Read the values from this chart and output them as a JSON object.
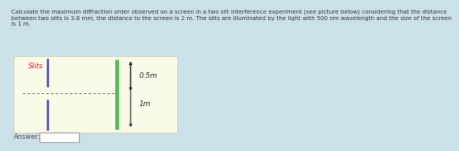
{
  "bg_color": "#cce0ea",
  "panel_color": "#fafae8",
  "title_text": "Calculate the maximum diffraction order observed on a screen in a two slit interference experiment (see picture below) considering that the distance\nbetween two slits is 3.8 mm, the distance to the screen is 2 m. The slits are illuminated by the light with 500 nm wavelength and the size of the screen\nis 1 m.",
  "title_fontsize": 5.2,
  "slits_label": "Slits",
  "slits_label_color": "#cc2222",
  "slits_label_fontsize": 6.5,
  "answer_label": "Answer:",
  "answer_fontsize": 6.0,
  "screen_color": "#55bb55",
  "label_05m_text": "0.5m",
  "label_1m_text": "1m"
}
